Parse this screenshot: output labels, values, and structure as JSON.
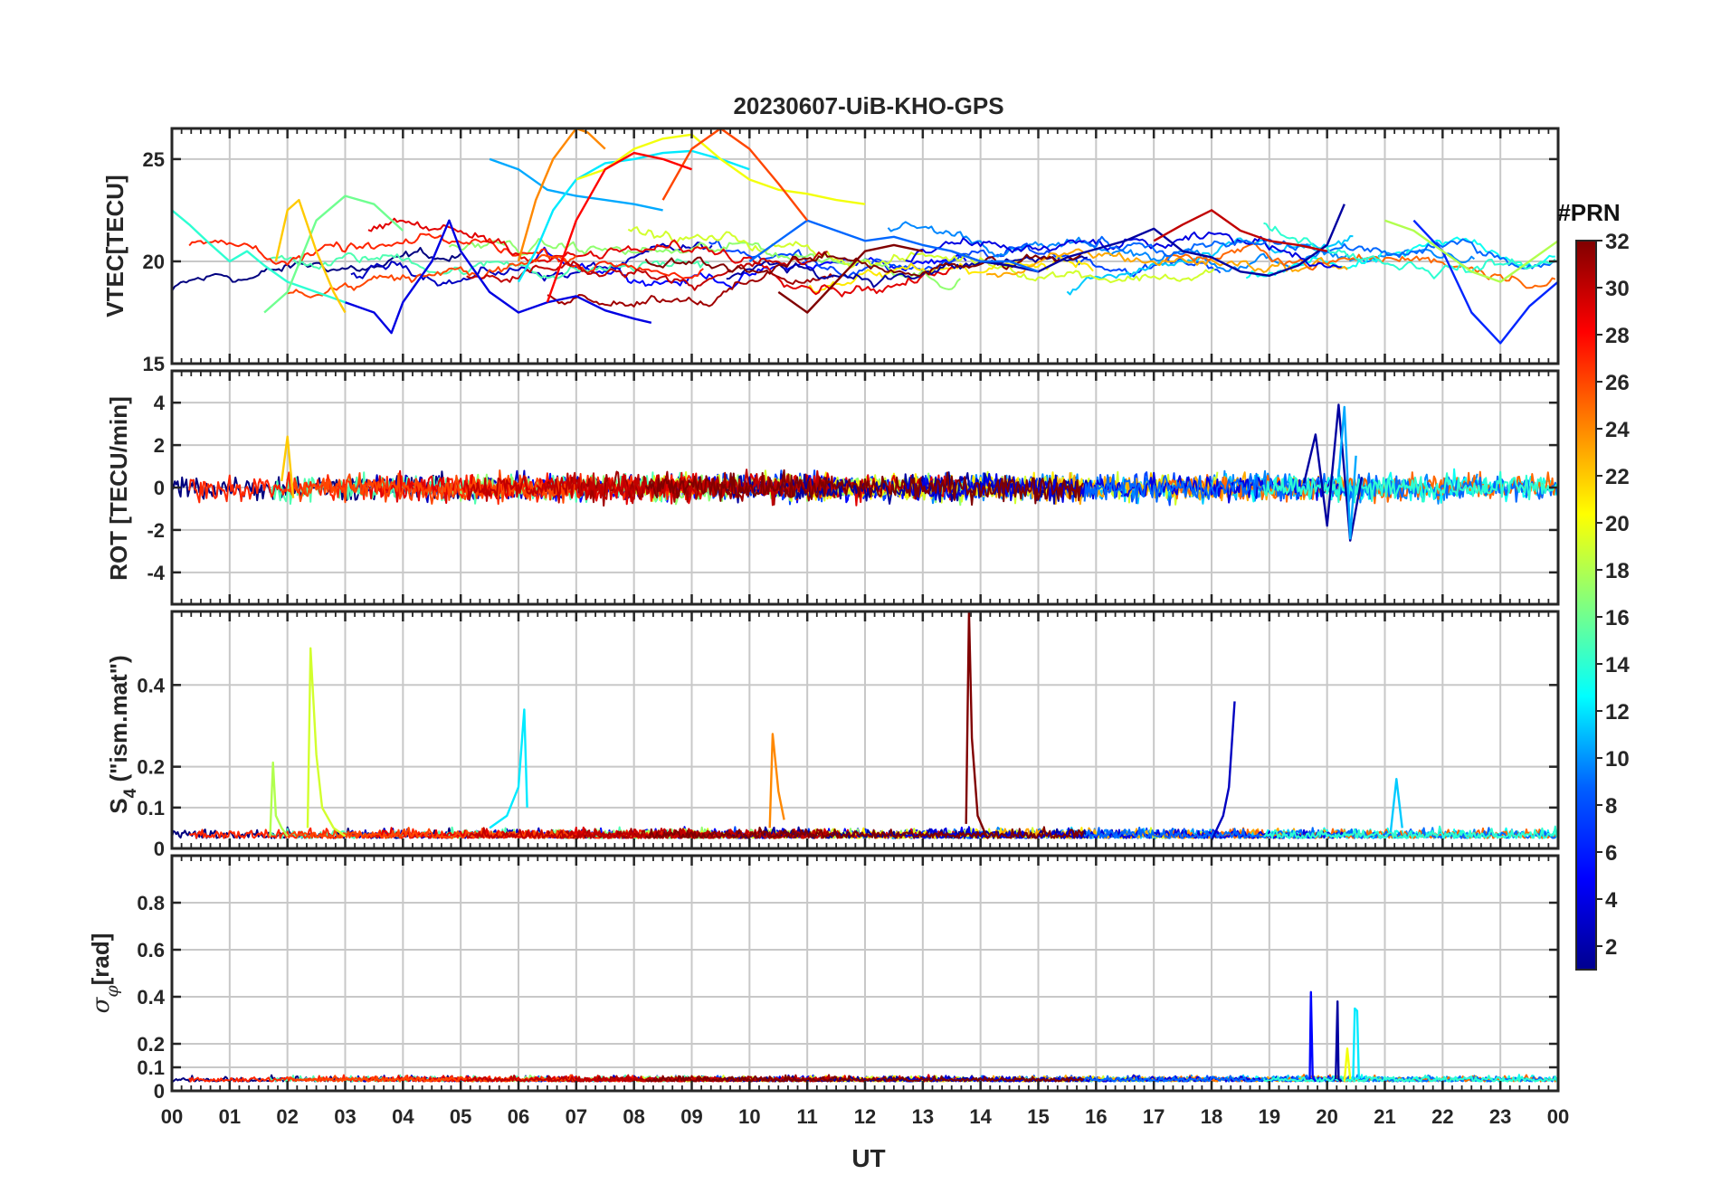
{
  "chart_data": {
    "type": "line",
    "title": "20230607-UiB-KHO-GPS",
    "xlabel": "UT",
    "x_tick_labels": [
      "00",
      "01",
      "02",
      "03",
      "04",
      "05",
      "06",
      "07",
      "08",
      "09",
      "10",
      "11",
      "12",
      "13",
      "14",
      "15",
      "16",
      "17",
      "18",
      "19",
      "20",
      "21",
      "22",
      "23",
      "00"
    ],
    "xlim_hours": [
      0,
      24
    ],
    "grid": true,
    "colorbar": {
      "title": "#PRN",
      "range": [
        1,
        32
      ],
      "tick_labels": [
        "2",
        "4",
        "6",
        "8",
        "10",
        "12",
        "14",
        "16",
        "18",
        "20",
        "22",
        "24",
        "26",
        "28",
        "30",
        "32"
      ],
      "colormap": [
        "#00008F",
        "#0000FF",
        "#0080FF",
        "#00FFFF",
        "#80FF80",
        "#FFFF00",
        "#FF8000",
        "#FF0000",
        "#800000"
      ]
    },
    "panels": [
      {
        "id": "vtec",
        "ylabel": "VTEC[TECU]",
        "ylim": [
          15,
          26.5
        ],
        "y_ticks": [
          15,
          20,
          25
        ],
        "y_tick_labels": [
          "15",
          "20",
          "25"
        ],
        "notes": "Multiple PRN arcs; VTEC mostly 17-23 TECU, daytime peak ~26.5 TECU around 07-10 UT",
        "series": [
          {
            "name": "PRN 2",
            "prn": 2,
            "x": [
              13.5,
              14.0,
              14.5,
              15.0,
              15.5,
              16.0,
              16.5,
              17.0,
              17.5,
              18.0,
              18.5,
              19.0,
              19.5,
              20.0,
              20.3
            ],
            "values": [
              20.5,
              20.0,
              19.8,
              19.5,
              20.2,
              20.6,
              21.0,
              21.6,
              20.5,
              20.2,
              19.5,
              19.3,
              19.8,
              20.8,
              22.8
            ]
          },
          {
            "name": "PRN 4",
            "prn": 4,
            "x": [
              3.0,
              3.5,
              3.8,
              4.0,
              4.5,
              4.8,
              5.0,
              5.5,
              6.0,
              6.5,
              7.0,
              7.5,
              8.0,
              8.3
            ],
            "values": [
              18.0,
              17.5,
              16.5,
              18.0,
              20.0,
              22.0,
              20.5,
              18.5,
              17.5,
              18.0,
              18.3,
              17.6,
              17.2,
              17.0
            ]
          },
          {
            "name": "PRN 6",
            "prn": 6,
            "x": [
              21.5,
              22.0,
              22.5,
              23.0,
              23.5,
              24.0
            ],
            "values": [
              22.0,
              20.5,
              17.5,
              16.0,
              17.8,
              19.0
            ]
          },
          {
            "name": "PRN 8",
            "prn": 8,
            "x": [
              10.0,
              10.5,
              11.0,
              11.5,
              12.0,
              12.5,
              13.0,
              13.5,
              14.0,
              14.5,
              15.0
            ],
            "values": [
              20.0,
              21.0,
              22.0,
              21.5,
              21.0,
              21.2,
              20.8,
              20.5,
              20.0,
              20.0,
              19.5
            ]
          },
          {
            "name": "PRN 10",
            "prn": 10,
            "x": [
              5.5,
              6.0,
              6.5,
              7.0,
              7.5,
              8.0,
              8.5
            ],
            "values": [
              25.0,
              24.5,
              23.5,
              23.2,
              23.0,
              22.8,
              22.5
            ]
          },
          {
            "name": "PRN 12",
            "prn": 12,
            "x": [
              6.0,
              6.3,
              6.6,
              7.0,
              7.5,
              8.0,
              8.5,
              9.0,
              9.5,
              10.0
            ],
            "values": [
              19.0,
              20.5,
              22.5,
              24.0,
              24.8,
              25.0,
              25.3,
              25.4,
              25.0,
              24.5
            ]
          },
          {
            "name": "PRN 14",
            "prn": 14,
            "x": [
              0.0,
              0.3,
              0.6,
              1.0,
              1.3,
              1.6,
              2.0,
              2.5,
              3.0
            ],
            "values": [
              22.5,
              21.8,
              21.0,
              20.0,
              20.5,
              19.8,
              19.0,
              18.5,
              18.0
            ]
          },
          {
            "name": "PRN 16",
            "prn": 16,
            "x": [
              1.6,
              2.0,
              2.5,
              3.0,
              3.5,
              4.0
            ],
            "values": [
              17.5,
              18.5,
              22.0,
              23.2,
              22.8,
              21.5
            ]
          },
          {
            "name": "PRN 18",
            "prn": 18,
            "x": [
              21.0,
              21.5,
              22.0,
              22.5,
              23.0,
              23.5,
              24.0
            ],
            "values": [
              22.0,
              21.5,
              20.5,
              19.5,
              19.0,
              20.0,
              21.0
            ]
          },
          {
            "name": "PRN 20",
            "prn": 20,
            "x": [
              7.0,
              7.5,
              8.0,
              8.5,
              9.0,
              9.5,
              10.0,
              10.5,
              11.0,
              11.5,
              12.0
            ],
            "values": [
              24.0,
              24.5,
              25.5,
              26.0,
              26.2,
              25.0,
              24.0,
              23.5,
              23.3,
              23.0,
              22.8
            ]
          },
          {
            "name": "PRN 22",
            "prn": 22,
            "x": [
              1.8,
              2.0,
              2.2,
              2.5,
              2.8,
              3.0
            ],
            "values": [
              20.0,
              22.5,
              23.0,
              20.5,
              18.5,
              17.5
            ]
          },
          {
            "name": "PRN 24",
            "prn": 24,
            "x": [
              6.0,
              6.3,
              6.6,
              7.0,
              7.2,
              7.5
            ],
            "values": [
              20.0,
              23.0,
              25.0,
              26.5,
              26.3,
              25.5
            ]
          },
          {
            "name": "PRN 26",
            "prn": 26,
            "x": [
              8.5,
              9.0,
              9.5,
              10.0,
              10.5,
              11.0
            ],
            "values": [
              23.0,
              25.5,
              26.5,
              25.5,
              23.8,
              22.0
            ]
          },
          {
            "name": "PRN 28",
            "prn": 28,
            "x": [
              6.5,
              7.0,
              7.5,
              8.0,
              8.5,
              9.0
            ],
            "values": [
              18.0,
              22.0,
              24.5,
              25.3,
              25.0,
              24.5
            ]
          },
          {
            "name": "PRN 30",
            "prn": 30,
            "x": [
              17.0,
              17.5,
              18.0,
              18.5,
              19.0,
              19.5,
              20.0
            ],
            "values": [
              21.0,
              21.8,
              22.5,
              21.5,
              21.0,
              20.8,
              20.5
            ]
          },
          {
            "name": "PRN 32",
            "prn": 32,
            "x": [
              10.5,
              11.0,
              11.5,
              12.0,
              12.5,
              13.0
            ],
            "values": [
              18.5,
              17.5,
              19.0,
              20.5,
              20.8,
              20.5
            ]
          }
        ]
      },
      {
        "id": "rot",
        "ylabel": "ROT [TECU/min]",
        "ylim": [
          -5.5,
          5.5
        ],
        "y_ticks": [
          -4,
          -2,
          0,
          2,
          4
        ],
        "y_tick_labels": [
          "-4",
          "-2",
          "0",
          "2",
          "4"
        ],
        "notes": "Noise mostly within about ±1 TECU/min; spikes up to about 3.9 near 20.3 UT",
        "series": [
          {
            "name": "PRN 2",
            "prn": 2,
            "x": [
              19.6,
              19.8,
              20.0,
              20.2,
              20.4,
              20.6
            ],
            "values": [
              0.2,
              2.5,
              -1.8,
              3.9,
              -2.5,
              0.5
            ]
          },
          {
            "name": "PRN 10",
            "prn": 10,
            "x": [
              20.2,
              20.3,
              20.4,
              20.5
            ],
            "values": [
              0.5,
              3.8,
              -2.4,
              1.5
            ]
          },
          {
            "name": "PRN 22",
            "prn": 22,
            "x": [
              1.9,
              2.0,
              2.1
            ],
            "values": [
              0.3,
              2.4,
              -0.5
            ]
          }
        ]
      },
      {
        "id": "s4",
        "ylabel": "S4 (\"ism.mat\")",
        "ylabel_main": "S",
        "ylabel_sub": "4",
        "ylabel_rest": " (\"ism.mat\")",
        "ylim": [
          0,
          0.58
        ],
        "y_ticks": [
          0,
          0.1,
          0.2,
          0.4
        ],
        "y_tick_labels": [
          "0",
          "0.1",
          "0.2",
          "0.4"
        ],
        "notes": "Background mostly below 0.05; spikes at ~1.7, ~2.4 (0.49), ~6.1 (0.34), ~13.8 (0.58), ~18.4 (0.36) UT",
        "series": [
          {
            "name": "PRN 18",
            "prn": 18,
            "x": [
              1.7,
              1.75,
              1.8,
              1.9,
              2.0
            ],
            "values": [
              0.03,
              0.21,
              0.08,
              0.05,
              0.03
            ]
          },
          {
            "name": "PRN 19",
            "prn": 19,
            "x": [
              2.35,
              2.4,
              2.5,
              2.6,
              2.8,
              3.0
            ],
            "values": [
              0.05,
              0.49,
              0.23,
              0.1,
              0.05,
              0.03
            ]
          },
          {
            "name": "PRN 12",
            "prn": 12,
            "x": [
              5.5,
              5.8,
              6.0,
              6.1,
              6.15
            ],
            "values": [
              0.05,
              0.08,
              0.15,
              0.34,
              0.1
            ]
          },
          {
            "name": "PRN 24",
            "prn": 24,
            "x": [
              10.35,
              10.4,
              10.5,
              10.6
            ],
            "values": [
              0.05,
              0.28,
              0.14,
              0.07
            ]
          },
          {
            "name": "PRN 32",
            "prn": 32,
            "x": [
              13.75,
              13.8,
              13.85,
              13.95,
              14.1
            ],
            "values": [
              0.06,
              0.58,
              0.27,
              0.08,
              0.03
            ]
          },
          {
            "name": "PRN 3",
            "prn": 3,
            "x": [
              18.0,
              18.2,
              18.3,
              18.4
            ],
            "values": [
              0.02,
              0.08,
              0.15,
              0.36
            ]
          },
          {
            "name": "PRN 11",
            "prn": 11,
            "x": [
              21.1,
              21.2,
              21.3
            ],
            "values": [
              0.04,
              0.17,
              0.05
            ]
          }
        ]
      },
      {
        "id": "sigma_phi",
        "ylabel": "σφ[rad]",
        "ylabel_main": "σ",
        "ylabel_sub": "φ",
        "ylabel_rest": "[rad]",
        "ylim": [
          0,
          1.0
        ],
        "y_ticks": [
          0,
          0.1,
          0.2,
          0.4,
          0.6,
          0.8
        ],
        "y_tick_labels": [
          "0",
          "0.1",
          "0.2",
          "0.4",
          "0.6",
          "0.8"
        ],
        "notes": "Background about 0.02-0.08 rad; spikes near 19.7-20.5 UT reaching ~0.42 rad",
        "series": [
          {
            "name": "PRN 5",
            "prn": 5,
            "x": [
              19.7,
              19.72,
              19.75,
              19.8
            ],
            "values": [
              0.05,
              0.42,
              0.06,
              0.04
            ]
          },
          {
            "name": "PRN 2",
            "prn": 2,
            "x": [
              20.15,
              20.18,
              20.2,
              20.25
            ],
            "values": [
              0.05,
              0.38,
              0.05,
              0.04
            ]
          },
          {
            "name": "PRN 12",
            "prn": 12,
            "x": [
              20.45,
              20.48,
              20.52,
              20.55
            ],
            "values": [
              0.05,
              0.35,
              0.34,
              0.05
            ]
          },
          {
            "name": "PRN 20",
            "prn": 20,
            "x": [
              20.3,
              20.35,
              20.4
            ],
            "values": [
              0.04,
              0.18,
              0.05
            ]
          }
        ]
      }
    ]
  }
}
